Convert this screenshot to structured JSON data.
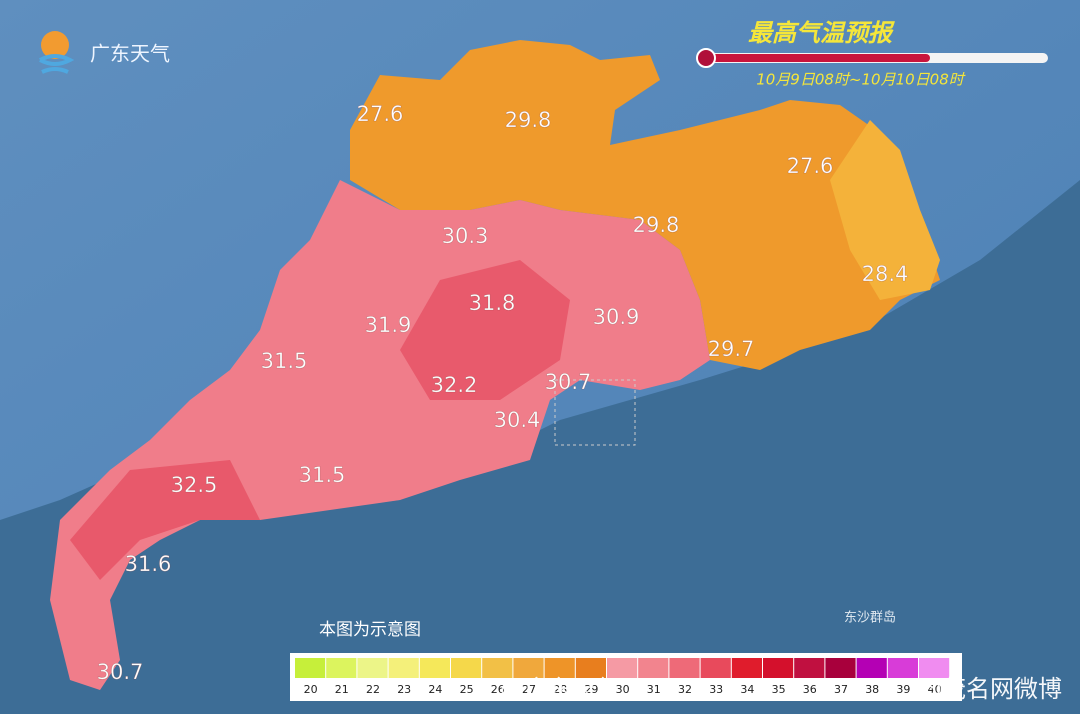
{
  "header": {
    "logo": "广东天气",
    "title": "最高气温预报",
    "period": "10月9日08时~10月10日08时"
  },
  "temperatures": [
    27.6,
    29.8,
    27.6,
    30.3,
    29.8,
    28.4,
    31.8,
    31.9,
    30.9,
    31.5,
    29.7,
    32.2,
    30.7,
    30.4,
    32.5,
    31.5,
    31.6,
    30.7
  ],
  "note": "本图为示意图",
  "island": "东沙群岛",
  "legend": {
    "labels": [
      20,
      21,
      22,
      23,
      24,
      25,
      26,
      27,
      28,
      29,
      30,
      31,
      32,
      33,
      34,
      35,
      36,
      37,
      38,
      39,
      40
    ],
    "colors": [
      "#c6ef3a",
      "#dcf45e",
      "#ecf588",
      "#f4f07a",
      "#f5e85a",
      "#f5d84a",
      "#f2c046",
      "#f0a83c",
      "#ee9428",
      "#e87e1e",
      "#f59aa4",
      "#f2848e",
      "#ee6a78",
      "#e84a5c",
      "#e01c2c",
      "#d4102c",
      "#c01040",
      "#a8003c",
      "#b400b4",
      "#d83cd8",
      "#f08cf0"
    ]
  },
  "watermarks": [
    "@广东天气",
    "@茂名网微博"
  ]
}
